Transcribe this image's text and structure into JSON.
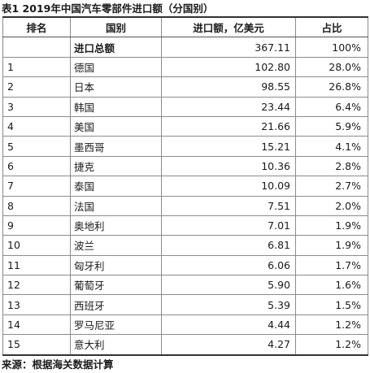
{
  "title": "表1  2019年中国汽车零部件进口额（分国别）",
  "headers": {
    "rank": "排名",
    "country": "国别",
    "amount": "进口额，亿美元",
    "share": "占比"
  },
  "total": {
    "rank": "",
    "country": "进口总额",
    "amount": "367.11",
    "share": "100%"
  },
  "rows": [
    {
      "rank": "1",
      "country": "德国",
      "amount": "102.80",
      "share": "28.0%"
    },
    {
      "rank": "2",
      "country": "日本",
      "amount": "98.55",
      "share": "26.8%"
    },
    {
      "rank": "3",
      "country": "韩国",
      "amount": "23.44",
      "share": "6.4%"
    },
    {
      "rank": "4",
      "country": "美国",
      "amount": "21.66",
      "share": "5.9%"
    },
    {
      "rank": "5",
      "country": "墨西哥",
      "amount": "15.21",
      "share": "4.1%"
    },
    {
      "rank": "6",
      "country": "捷克",
      "amount": "10.36",
      "share": "2.8%"
    },
    {
      "rank": "7",
      "country": "泰国",
      "amount": "10.09",
      "share": "2.7%"
    },
    {
      "rank": "8",
      "country": "法国",
      "amount": "7.51",
      "share": "2.0%"
    },
    {
      "rank": "9",
      "country": "奥地利",
      "amount": "7.01",
      "share": "1.9%"
    },
    {
      "rank": "10",
      "country": "波兰",
      "amount": "6.81",
      "share": "1.9%"
    },
    {
      "rank": "11",
      "country": "匈牙利",
      "amount": "6.06",
      "share": "1.7%"
    },
    {
      "rank": "12",
      "country": "葡萄牙",
      "amount": "5.90",
      "share": "1.6%"
    },
    {
      "rank": "13",
      "country": "西班牙",
      "amount": "5.39",
      "share": "1.5%"
    },
    {
      "rank": "14",
      "country": "罗马尼亚",
      "amount": "4.44",
      "share": "1.2%"
    },
    {
      "rank": "15",
      "country": "意大利",
      "amount": "4.27",
      "share": "1.2%"
    }
  ],
  "source": "来源：根据海关数据计算"
}
